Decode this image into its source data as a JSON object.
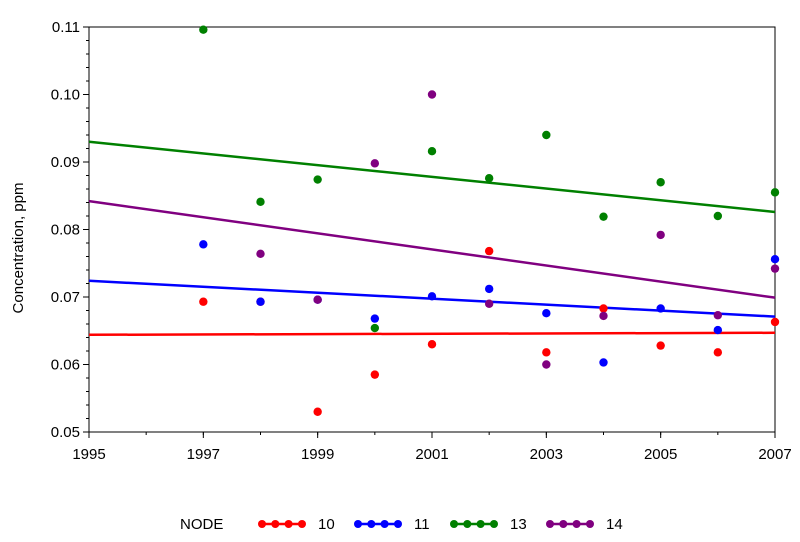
{
  "chart_data": {
    "type": "scatter",
    "title": "",
    "xlabel": "",
    "ylabel": "Concentration, ppm",
    "xlim": [
      1995,
      2007
    ],
    "ylim": [
      0.05,
      0.11
    ],
    "x_ticks": [
      1995,
      1997,
      1999,
      2001,
      2003,
      2005,
      2007
    ],
    "x_tick_labels": [
      "1995",
      "1997",
      "1999",
      "2001",
      "2003",
      "2005",
      "2007"
    ],
    "y_ticks": [
      0.05,
      0.06,
      0.07,
      0.08,
      0.09,
      0.1,
      0.11
    ],
    "y_tick_labels": [
      "0.05",
      "0.06",
      "0.07",
      "0.08",
      "0.09",
      "0.10",
      "0.11"
    ],
    "grid": false,
    "legend": {
      "title": "NODE",
      "placement": "bottom"
    },
    "series": [
      {
        "name": "10",
        "color": "#ff0000",
        "points": [
          {
            "x": 1997,
            "y": 0.0693
          },
          {
            "x": 1998,
            "y": 0.0693
          },
          {
            "x": 1999,
            "y": 0.053
          },
          {
            "x": 2000,
            "y": 0.0585
          },
          {
            "x": 2001,
            "y": 0.063
          },
          {
            "x": 2002,
            "y": 0.0768
          },
          {
            "x": 2003,
            "y": 0.0618
          },
          {
            "x": 2004,
            "y": 0.0683
          },
          {
            "x": 2005,
            "y": 0.0628
          },
          {
            "x": 2006,
            "y": 0.0618
          },
          {
            "x": 2007,
            "y": 0.0663
          }
        ],
        "trend": [
          {
            "x": 1995,
            "y": 0.0644
          },
          {
            "x": 2007,
            "y": 0.0647
          }
        ]
      },
      {
        "name": "11",
        "color": "#0000ff",
        "points": [
          {
            "x": 1997,
            "y": 0.0778
          },
          {
            "x": 1998,
            "y": 0.0693
          },
          {
            "x": 1999,
            "y": 0.0696
          },
          {
            "x": 2000,
            "y": 0.0668
          },
          {
            "x": 2001,
            "y": 0.0701
          },
          {
            "x": 2002,
            "y": 0.0712
          },
          {
            "x": 2003,
            "y": 0.0676
          },
          {
            "x": 2004,
            "y": 0.0603
          },
          {
            "x": 2005,
            "y": 0.0683
          },
          {
            "x": 2006,
            "y": 0.0651
          },
          {
            "x": 2007,
            "y": 0.0756
          }
        ],
        "trend": [
          {
            "x": 1995,
            "y": 0.0724
          },
          {
            "x": 2007,
            "y": 0.0671
          }
        ]
      },
      {
        "name": "13",
        "color": "#008000",
        "points": [
          {
            "x": 1997,
            "y": 0.1096
          },
          {
            "x": 1998,
            "y": 0.0841
          },
          {
            "x": 1999,
            "y": 0.0874
          },
          {
            "x": 2000,
            "y": 0.0654
          },
          {
            "x": 2001,
            "y": 0.0916
          },
          {
            "x": 2002,
            "y": 0.0876
          },
          {
            "x": 2003,
            "y": 0.094
          },
          {
            "x": 2004,
            "y": 0.0819
          },
          {
            "x": 2005,
            "y": 0.087
          },
          {
            "x": 2006,
            "y": 0.082
          },
          {
            "x": 2007,
            "y": 0.0855
          }
        ],
        "trend": [
          {
            "x": 1995,
            "y": 0.093
          },
          {
            "x": 2007,
            "y": 0.0826
          }
        ]
      },
      {
        "name": "14",
        "color": "#800080",
        "points": [
          {
            "x": 1998,
            "y": 0.0764
          },
          {
            "x": 1999,
            "y": 0.0696
          },
          {
            "x": 2000,
            "y": 0.0898
          },
          {
            "x": 2001,
            "y": 0.1
          },
          {
            "x": 2002,
            "y": 0.069
          },
          {
            "x": 2003,
            "y": 0.06
          },
          {
            "x": 2004,
            "y": 0.0672
          },
          {
            "x": 2005,
            "y": 0.0792
          },
          {
            "x": 2006,
            "y": 0.0673
          },
          {
            "x": 2007,
            "y": 0.0742
          }
        ],
        "trend": [
          {
            "x": 1995,
            "y": 0.0842
          },
          {
            "x": 2007,
            "y": 0.0699
          }
        ]
      }
    ]
  }
}
